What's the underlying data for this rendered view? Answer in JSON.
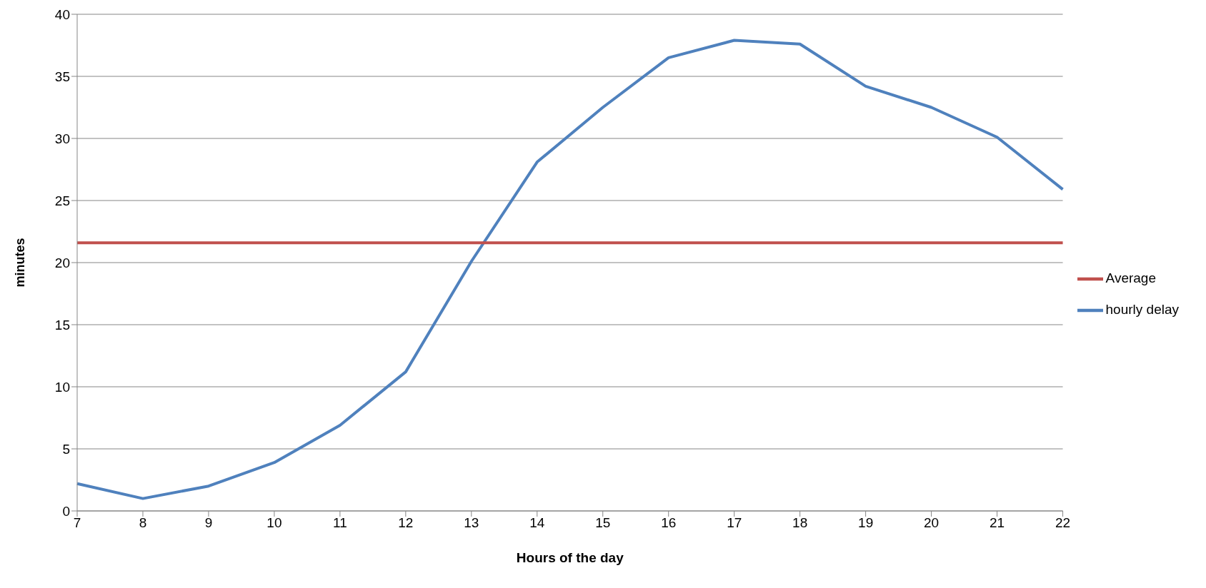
{
  "chart_data": {
    "type": "line",
    "xlabel": "Hours of the day",
    "ylabel": "minutes",
    "categories": [
      "7",
      "8",
      "9",
      "10",
      "11",
      "12",
      "13",
      "14",
      "15",
      "16",
      "17",
      "18",
      "19",
      "20",
      "21",
      "22"
    ],
    "series": [
      {
        "name": "hourly delay",
        "color": "#4f81bd",
        "values": [
          2.2,
          1.0,
          2.0,
          3.9,
          6.9,
          11.2,
          20.1,
          28.1,
          32.5,
          36.5,
          37.9,
          37.6,
          34.2,
          32.5,
          30.1,
          25.9
        ]
      },
      {
        "name": "Average",
        "color": "#c0504d",
        "values": [
          21.6,
          21.6,
          21.6,
          21.6,
          21.6,
          21.6,
          21.6,
          21.6,
          21.6,
          21.6,
          21.6,
          21.6,
          21.6,
          21.6,
          21.6,
          21.6
        ]
      }
    ],
    "ylim": [
      0,
      40
    ],
    "yticks": [
      0,
      5,
      10,
      15,
      20,
      25,
      30,
      35,
      40
    ],
    "grid": "y",
    "legend": "right",
    "marker": "none",
    "line_style": "solid"
  }
}
